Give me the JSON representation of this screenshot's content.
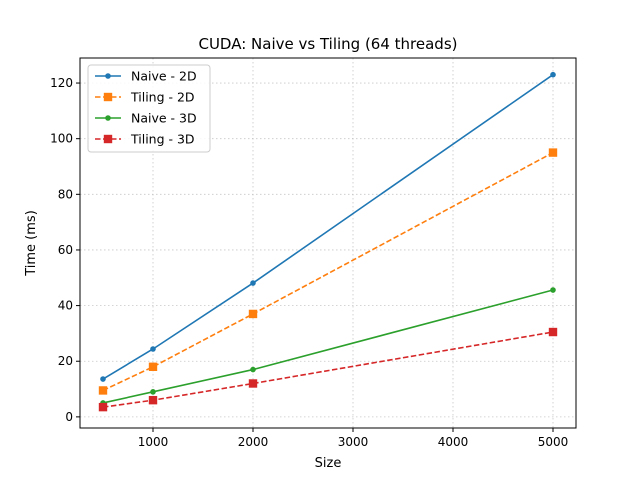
{
  "chart_data": {
    "type": "line",
    "title": "CUDA: Naive vs Tiling (64 threads)",
    "xlabel": "Size",
    "ylabel": "Time (ms)",
    "xlim": [
      270,
      5230
    ],
    "ylim": [
      -4,
      129
    ],
    "xticks": [
      1000,
      2000,
      3000,
      4000,
      5000
    ],
    "yticks": [
      0,
      20,
      40,
      60,
      80,
      100,
      120
    ],
    "grid": true,
    "legend_position": "top-left",
    "series": [
      {
        "name": "Naive - 2D",
        "color": "#1f77b4",
        "dash": "solid",
        "marker": "circle",
        "x": [
          500,
          1000,
          2000,
          5000
        ],
        "y": [
          13.6,
          24.4,
          48.1,
          123.0
        ]
      },
      {
        "name": "Tiling - 2D",
        "color": "#ff7f0e",
        "dash": "dashed",
        "marker": "square",
        "x": [
          500,
          1000,
          2000,
          5000
        ],
        "y": [
          9.5,
          18.0,
          37.0,
          95.0
        ]
      },
      {
        "name": "Naive - 3D",
        "color": "#2ca02c",
        "dash": "solid",
        "marker": "circle",
        "x": [
          500,
          1000,
          2000,
          5000
        ],
        "y": [
          5.0,
          9.0,
          17.0,
          45.6
        ]
      },
      {
        "name": "Tiling - 3D",
        "color": "#d62728",
        "dash": "dashed",
        "marker": "square",
        "x": [
          500,
          1000,
          2000,
          5000
        ],
        "y": [
          3.5,
          6.0,
          12.0,
          30.5
        ]
      }
    ]
  }
}
